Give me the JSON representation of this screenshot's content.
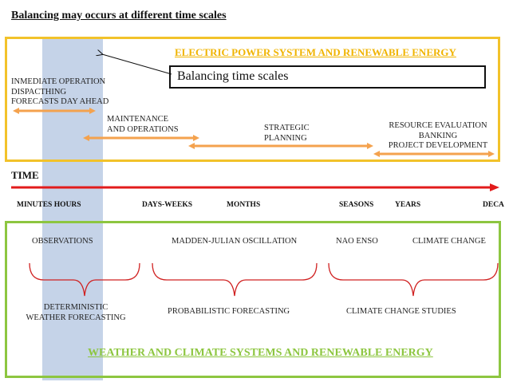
{
  "title": "Balancing may occurs at different time scales",
  "power_header": "ELECTRIC POWER SYSTEM AND RENEWABLE ENERGY",
  "callout": "Balancing time scales",
  "power_items": {
    "immediate": [
      "INMEDIATE OPERATION",
      "DISPACTHING",
      "FORECASTS DAY AHEAD"
    ],
    "maintenance": [
      "MAINTENANCE",
      "AND OPERATIONS"
    ],
    "strategic": [
      "STRATEGIC",
      "PLANNING"
    ],
    "resource": [
      "RESOURCE EVALUATION",
      "BANKING",
      "PROJECT DEVELOPMENT"
    ]
  },
  "time_label": "TIME",
  "time_scales": {
    "minutes_hours": "MINUTES HOURS",
    "days_weeks": "DAYS-WEEKS",
    "months": "MONTHS",
    "seasons": "SEASONS",
    "years": "YEARS",
    "decades": "DECA"
  },
  "weather_items": {
    "observations": "OBSERVATIONS",
    "mjo": "MADDEN-JULIAN OSCILLATION",
    "nao_enso": "NAO  ENSO",
    "climate_change": "CLIMATE CHANGE"
  },
  "weather_groups": {
    "deterministic": [
      "DETERMINISTIC",
      "WEATHER FORECASTING"
    ],
    "probabilistic": "PROBABILISTIC FORECASTING",
    "studies": "CLIMATE CHANGE STUDIES"
  },
  "weather_header": "WEATHER AND CLIMATE SYSTEMS AND RENEWABLE ENERGY",
  "colors": {
    "band": "#c5d3e8",
    "power_border": "#f2c22a",
    "power_header": "#f0b400",
    "weather_border": "#8dc640",
    "orange_arrow": "#f4a24e",
    "time_axis": "#e21b1b",
    "brace": "#d02020"
  }
}
